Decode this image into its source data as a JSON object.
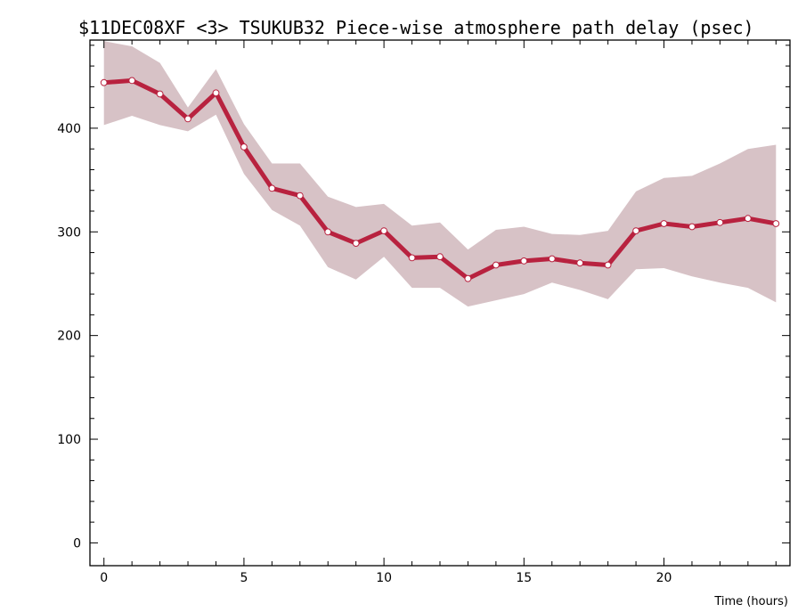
{
  "chart_data": {
    "type": "line",
    "title": "$11DEC08XF <3>  TSUKUB32  Piece-wise atmosphere path delay (psec)",
    "xlabel": "Time (hours)",
    "ylabel": "",
    "xlim": [
      -0.5,
      24.5
    ],
    "ylim": [
      -22,
      485
    ],
    "x_ticks": [
      0,
      5,
      10,
      15,
      20
    ],
    "y_ticks": [
      0,
      100,
      200,
      300,
      400
    ],
    "grid": false,
    "colors": {
      "line": "#b8223f",
      "band": "#d7c2c6",
      "marker_fill": "#ffffff"
    },
    "series": [
      {
        "x": [
          0,
          1,
          2,
          3,
          4,
          5,
          6,
          7,
          8,
          9,
          10,
          11,
          12,
          13,
          14,
          15,
          16,
          17,
          18,
          19,
          20,
          21,
          22,
          23,
          24
        ],
        "y": [
          444,
          446,
          433,
          409,
          434,
          382,
          342,
          335,
          300,
          289,
          301,
          275,
          276,
          255,
          268,
          272,
          274,
          270,
          268,
          301,
          308,
          305,
          309,
          313,
          308
        ],
        "upper": [
          484,
          479,
          463,
          420,
          457,
          404,
          366,
          366,
          334,
          324,
          327,
          306,
          309,
          283,
          302,
          305,
          298,
          297,
          301,
          339,
          352,
          354,
          366,
          380,
          384
        ],
        "lower": [
          403,
          412,
          403,
          397,
          413,
          356,
          321,
          306,
          266,
          254,
          276,
          246,
          246,
          228,
          234,
          240,
          251,
          244,
          235,
          264,
          265,
          257,
          251,
          246,
          232
        ]
      }
    ]
  }
}
